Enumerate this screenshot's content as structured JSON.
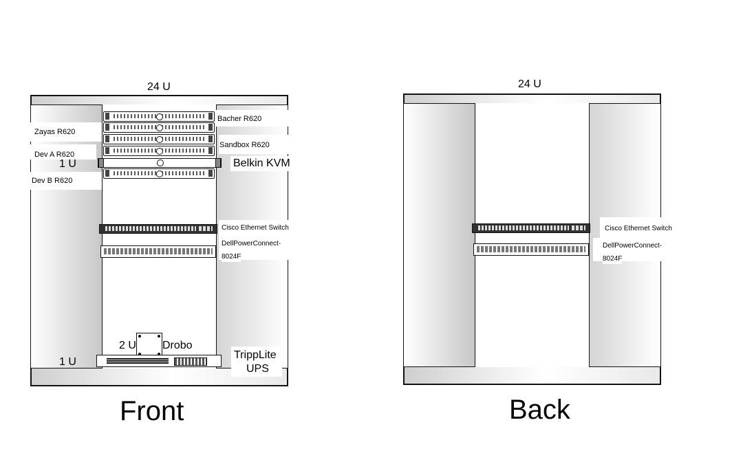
{
  "front": {
    "title": "Front",
    "height_label": "24 U",
    "labels": {
      "zayas": "Zayas R620",
      "dev_a": "Dev A R620",
      "dev_b": "Dev B R620",
      "bacher": "Bacher R620",
      "sandbox": "Sandbox R620",
      "belkin": "Belkin KVM",
      "kvm_u": "1 U",
      "cisco": "Cisco Ethernet Switch",
      "dell_line1": "DellPowerConnect-",
      "dell_line2": "8024F",
      "drobo_u": "2 U",
      "drobo": "Drobo",
      "ups_u": "1 U",
      "ups_line1": "TrippLite",
      "ups_line2": "UPS"
    }
  },
  "back": {
    "title": "Back",
    "height_label": "24 U",
    "labels": {
      "cisco": "Cisco Ethernet Switch",
      "dell_line1": "DellPowerConnect-",
      "dell_line2": "8024F"
    }
  }
}
